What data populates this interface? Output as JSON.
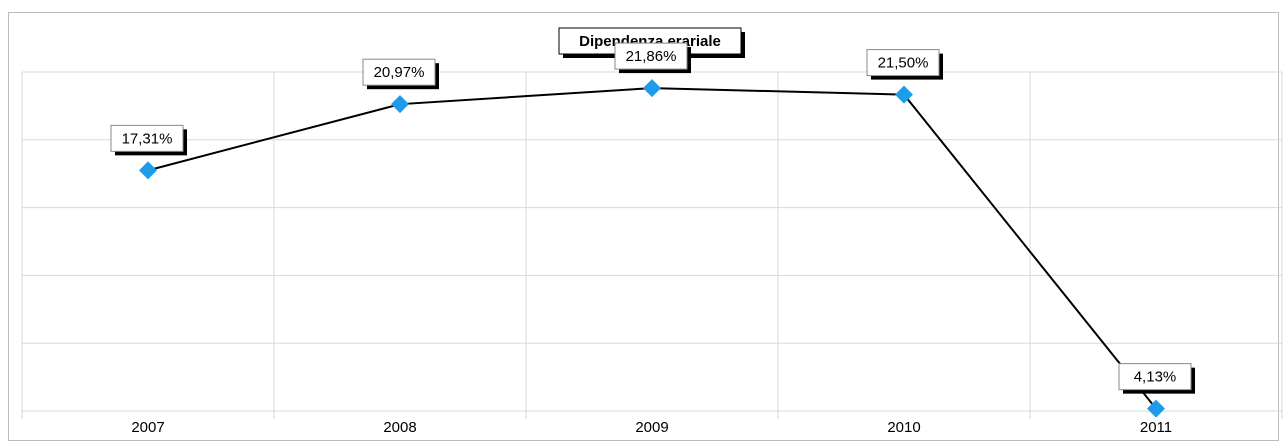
{
  "chart_data": {
    "type": "line",
    "title": "Dipendenza erariale",
    "categories": [
      "2007",
      "2008",
      "2009",
      "2010",
      "2011"
    ],
    "series": [
      {
        "name": "Dipendenza erariale",
        "color": "#1e9be9",
        "line_color": "#000000",
        "values": [
          17.31,
          20.97,
          21.86,
          21.5,
          4.13
        ],
        "value_labels": [
          "17,31%",
          "20,97%",
          "21,86%",
          "21,50%",
          "4,13%"
        ]
      }
    ],
    "ylim": [
      4,
      22.75
    ],
    "yticks": [
      4,
      7.75,
      11.5,
      15.25,
      19,
      22.75
    ],
    "grid": true
  }
}
